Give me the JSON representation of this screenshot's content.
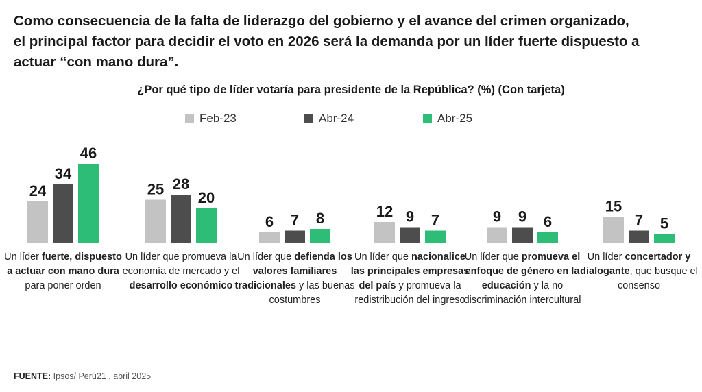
{
  "headline": {
    "line1": "Como consecuencia de la falta de liderazgo del gobierno y el avance del crimen organizado,",
    "line2": "el principal factor para decidir el voto en 2026 será la demanda por un líder fuerte dispuesto a",
    "line3": "actuar “con mano dura”."
  },
  "chart_data": {
    "type": "bar",
    "title": "¿Por qué tipo de líder votaría para presidente de la República? (%) (Con tarjeta)",
    "categories": [
      "Un líder fuerte, dispuesto a actuar con mano dura para poner orden",
      "Un líder que promueva la economía de mercado y el desarrollo económico",
      "Un líder que defienda los valores familiares tradicionales y las buenas costumbres",
      "Un líder que nacionalice las principales empresas del país y promueva la redistribución del ingreso",
      "Un líder que promueva el enfoque de género en la educación y la no discriminación intercultural",
      "Un líder concertador y dialogante, que busque el consenso"
    ],
    "series": [
      {
        "name": "Feb-23",
        "color": "#c3c3c3",
        "values": [
          24,
          25,
          6,
          12,
          9,
          15
        ]
      },
      {
        "name": "Abr-24",
        "color": "#4d4d4d",
        "values": [
          34,
          28,
          7,
          9,
          9,
          7
        ]
      },
      {
        "name": "Abr-25",
        "color": "#2dbd77",
        "values": [
          46,
          20,
          8,
          7,
          6,
          5
        ]
      }
    ],
    "legend_position": "top-center",
    "grid": false,
    "ylim": [
      0,
      46
    ]
  },
  "labels": [
    {
      "p1": "Un líder ",
      "b1": "fuerte, dispuesto a actuar con mano dura",
      "p2": " para poner orden",
      "b2": "",
      "p3": ""
    },
    {
      "p1": "Un líder que promueva la economía de mercado y el ",
      "b1": "desarrollo económico",
      "p2": "",
      "b2": "",
      "p3": ""
    },
    {
      "p1": "Un líder que ",
      "b1": "defienda los valores familiares tradicionales",
      "p2": " y las buenas costumbres",
      "b2": "",
      "p3": ""
    },
    {
      "p1": "Un líder que ",
      "b1": "nacionalice las principales empresas del país",
      "p2": " y promueva la redistribución del ingreso",
      "b2": "",
      "p3": ""
    },
    {
      "p1": "Un líder que ",
      "b1": "promueva el enfoque de género en la educación",
      "p2": " y la no discriminación intercultural",
      "b2": "",
      "p3": ""
    },
    {
      "p1": "Un líder ",
      "b1": "concertador y dialogante",
      "p2": ", que busque el consenso",
      "b2": "",
      "p3": ""
    }
  ],
  "source": {
    "label": "FUENTE:",
    "text": " Ipsos/ Perú21 , abril 2025"
  }
}
